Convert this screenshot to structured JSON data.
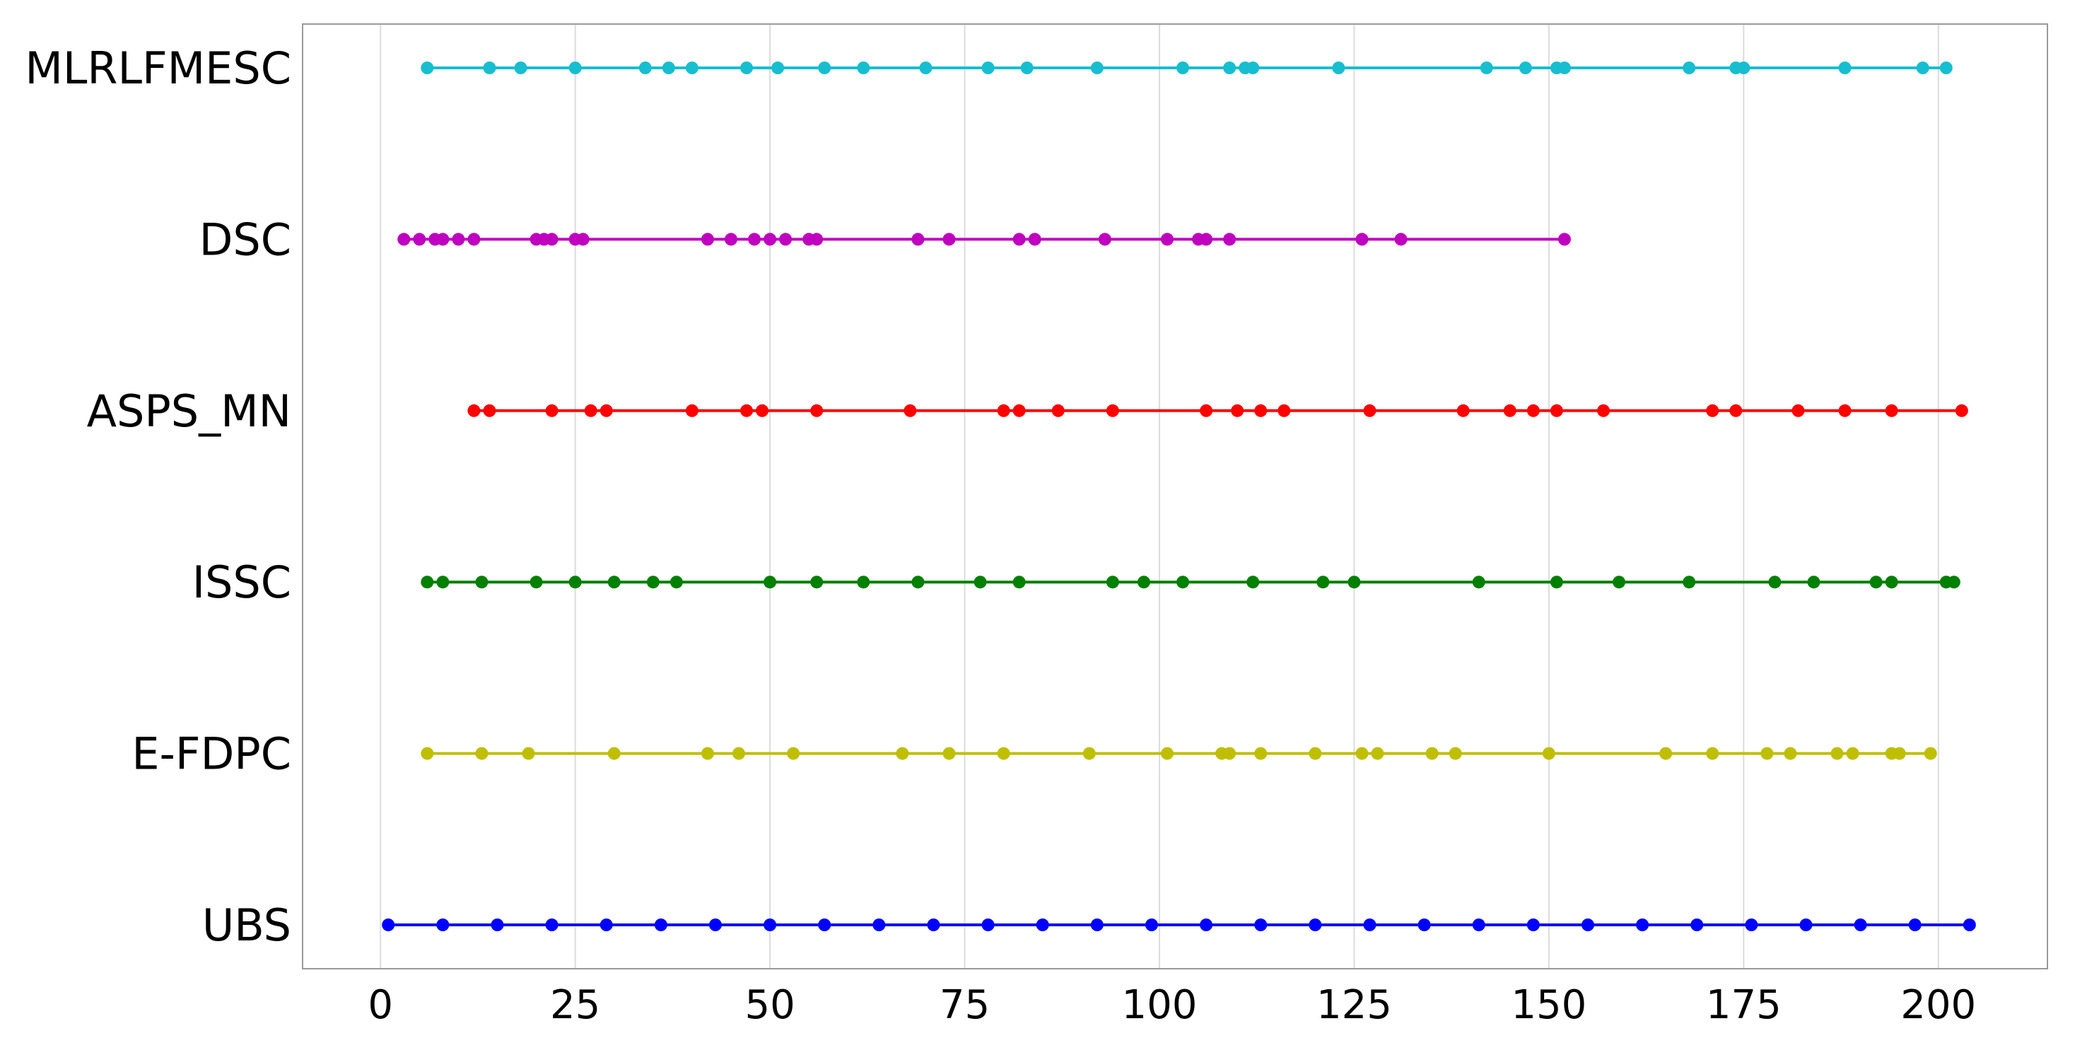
{
  "chart_data": {
    "type": "scatter",
    "xlim": [
      -10,
      214
    ],
    "x_ticks": [
      0,
      25,
      50,
      75,
      100,
      125,
      150,
      175,
      200
    ],
    "x_tick_labels": [
      "0",
      "25",
      "50",
      "75",
      "100",
      "125",
      "150",
      "175",
      "200"
    ],
    "grid": "vertical",
    "legend": "none",
    "series": [
      {
        "name": "MLRLFMESC",
        "color": "#17becf",
        "x": [
          6,
          14,
          18,
          25,
          34,
          37,
          40,
          47,
          51,
          57,
          62,
          70,
          78,
          83,
          92,
          103,
          109,
          111,
          112,
          123,
          142,
          147,
          151,
          152,
          168,
          174,
          175,
          188,
          198,
          201
        ]
      },
      {
        "name": "DSC",
        "color": "#bf00bf",
        "x": [
          3,
          5,
          7,
          8,
          10,
          12,
          20,
          21,
          22,
          25,
          26,
          42,
          45,
          48,
          50,
          52,
          55,
          56,
          69,
          73,
          82,
          84,
          93,
          101,
          105,
          106,
          109,
          126,
          131,
          152
        ]
      },
      {
        "name": "ASPS_MN",
        "color": "#ff0000",
        "x": [
          12,
          14,
          22,
          27,
          29,
          40,
          47,
          49,
          56,
          68,
          80,
          82,
          87,
          94,
          106,
          110,
          113,
          116,
          127,
          139,
          145,
          148,
          151,
          157,
          171,
          174,
          182,
          188,
          194,
          203
        ]
      },
      {
        "name": "ISSC",
        "color": "#008000",
        "x": [
          6,
          8,
          13,
          20,
          25,
          30,
          35,
          38,
          50,
          56,
          62,
          69,
          77,
          82,
          94,
          98,
          103,
          112,
          121,
          125,
          141,
          151,
          159,
          168,
          179,
          184,
          192,
          194,
          201,
          202
        ]
      },
      {
        "name": "E-FDPC",
        "color": "#bfbf00",
        "x": [
          6,
          13,
          19,
          30,
          42,
          46,
          53,
          67,
          73,
          80,
          91,
          101,
          108,
          109,
          113,
          120,
          126,
          128,
          135,
          138,
          150,
          165,
          171,
          178,
          181,
          187,
          189,
          194,
          195,
          199
        ]
      },
      {
        "name": "UBS",
        "color": "#0000ff",
        "x": [
          1,
          8,
          15,
          22,
          29,
          36,
          43,
          50,
          57,
          64,
          71,
          78,
          85,
          92,
          99,
          106,
          113,
          120,
          127,
          134,
          141,
          148,
          155,
          162,
          169,
          176,
          183,
          190,
          197,
          204
        ]
      }
    ]
  }
}
